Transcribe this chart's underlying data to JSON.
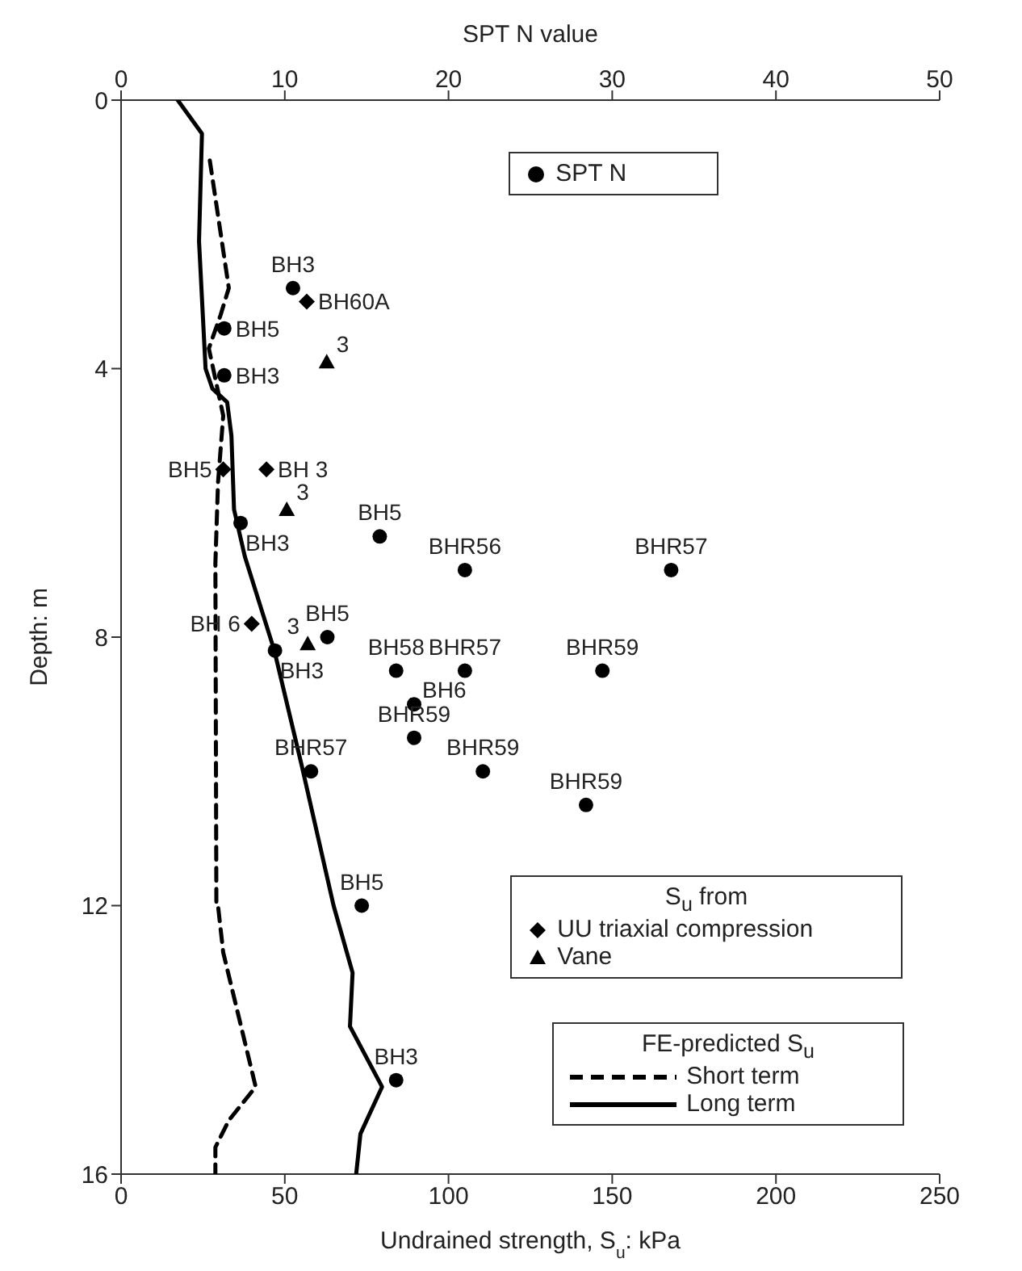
{
  "chart_data": {
    "type": "scatter",
    "xlabel": "Undrained strength, S$_{u}$: kPa",
    "x2label": "SPT N value",
    "ylabel": "Depth: m",
    "xlim": [
      0,
      250
    ],
    "xticks": [
      0,
      50,
      100,
      150,
      200,
      250
    ],
    "x2lim": [
      0,
      50
    ],
    "x2ticks": [
      0,
      10,
      20,
      30,
      40,
      50
    ],
    "ylim": [
      16,
      0
    ],
    "yticks": [
      0,
      4,
      8,
      12,
      16
    ],
    "grid": false,
    "legend": "right",
    "annotations": [
      "S$_{u}$ from",
      "FE-predicted S$_{u}$",
      {
        "text": "3",
        "x": 62.8,
        "y": 3.9
      },
      {
        "text": "3",
        "x": 50.6,
        "y": 6.1
      },
      {
        "text": "3",
        "x": 57.0,
        "y": 8.1
      }
    ],
    "series": [
      {
        "name": "SPT N",
        "type": "scatter",
        "axis": "x2",
        "marker": "circle",
        "color": "#000000",
        "x": [
          10.5,
          6.3,
          6.3,
          7.3,
          15.8,
          21.0,
          33.6,
          12.6,
          9.4,
          16.8,
          21.0,
          29.4,
          17.9,
          17.9,
          11.6,
          22.1,
          28.4,
          14.7,
          16.8
        ],
        "values": [
          2.8,
          3.4,
          4.1,
          6.3,
          6.5,
          7.0,
          7.0,
          8.0,
          8.2,
          8.5,
          8.5,
          8.5,
          9.0,
          9.5,
          10.0,
          10.0,
          10.5,
          12.0,
          14.6
        ],
        "value_labels": [
          "BH3",
          "BH5",
          "BH3",
          "BH3",
          "BH5",
          "BHR56",
          "BHR57",
          "BH5",
          "BH3",
          "BH58",
          "BHR57",
          "BHR59",
          "BH6",
          "BHR59",
          "BHR57",
          "BHR59",
          "BHR59",
          "BH5",
          "BH3"
        ]
      },
      {
        "name": "UU triaxial compression",
        "type": "scatter",
        "marker": "diamond",
        "color": "#000000",
        "x": [
          56.7,
          31.2,
          44.4,
          39.9
        ],
        "values": [
          3.0,
          5.5,
          5.5,
          7.8
        ],
        "value_labels": [
          "BH60A",
          "BH5",
          "BH 3",
          "BH 6"
        ]
      },
      {
        "name": "Vane",
        "type": "scatter",
        "marker": "triangle",
        "color": "#000000",
        "x": [
          62.8,
          50.6,
          57.0
        ],
        "values": [
          3.9,
          6.1,
          8.1
        ]
      },
      {
        "name": "Short term",
        "type": "line",
        "line_style": "dashed",
        "color": "#000000",
        "x": [
          27.1,
          32.9,
          30.4,
          26.8,
          31.2,
          29.6,
          28.8,
          29.1,
          29.6,
          31.2,
          41.1,
          32.9,
          28.8,
          28.8
        ],
        "values": [
          0.9,
          2.8,
          3.2,
          3.7,
          4.7,
          5.7,
          6.9,
          12.0,
          12.0,
          12.7,
          14.7,
          15.2,
          15.6,
          16.0
        ]
      },
      {
        "name": "Long term",
        "type": "line",
        "line_style": "solid",
        "color": "#000000",
        "x": [
          17.3,
          24.7,
          23.8,
          25.8,
          27.9,
          32.4,
          33.7,
          34.5,
          37.8,
          46.8,
          55.1,
          64.9,
          70.7,
          69.9,
          79.7,
          73.1,
          71.8
        ],
        "values": [
          0,
          0.5,
          2.1,
          4.0,
          4.3,
          4.5,
          5.0,
          6.1,
          6.8,
          8.2,
          9.9,
          12.0,
          13.0,
          13.8,
          14.7,
          15.4,
          16.0
        ]
      }
    ]
  }
}
